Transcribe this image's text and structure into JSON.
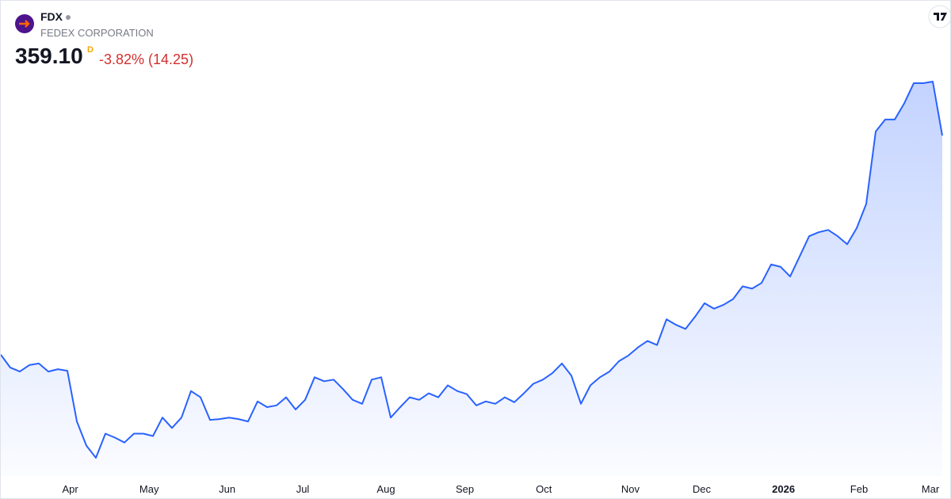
{
  "header": {
    "symbol": "FDX",
    "name": "FEDEX CORPORATION",
    "price": "359.10",
    "price_flag": "D",
    "change": "-3.82% (14.25)"
  },
  "chart_data": {
    "type": "area",
    "color": "#2962ff",
    "values": [
      247.6,
      241.0,
      239.0,
      242.3,
      243.1,
      239.0,
      240.2,
      239.4,
      213.6,
      201.3,
      195.1,
      207.4,
      205.4,
      202.9,
      207.4,
      207.4,
      206.2,
      215.6,
      210.3,
      215.6,
      229.1,
      225.9,
      214.4,
      214.8,
      215.6,
      214.8,
      213.6,
      223.8,
      220.9,
      221.8,
      225.9,
      219.7,
      224.6,
      236.1,
      234.1,
      234.9,
      230.0,
      224.6,
      222.6,
      234.9,
      236.1,
      215.6,
      220.9,
      225.9,
      224.6,
      227.9,
      225.9,
      232.0,
      229.1,
      227.5,
      221.8,
      223.8,
      222.6,
      225.9,
      223.4,
      227.9,
      232.8,
      234.9,
      238.2,
      243.1,
      236.9,
      222.6,
      232.0,
      236.1,
      239.0,
      244.3,
      247.2,
      251.3,
      254.6,
      252.5,
      265.6,
      262.8,
      260.7,
      266.9,
      273.8,
      271.0,
      273.0,
      275.9,
      282.4,
      281.2,
      284.1,
      293.5,
      292.3,
      287.4,
      297.6,
      307.9,
      309.9,
      311.1,
      307.9,
      303.8,
      312.0,
      324.3,
      361.2,
      367.3,
      367.3,
      375.5,
      385.8,
      385.8,
      386.6,
      359.1
    ],
    "xticks": [
      {
        "value": 7.3,
        "label": "Apr"
      },
      {
        "value": 15.6,
        "label": "May"
      },
      {
        "value": 23.8,
        "label": "Jun"
      },
      {
        "value": 31.75,
        "label": "Jul"
      },
      {
        "value": 40.5,
        "label": "Aug"
      },
      {
        "value": 48.8,
        "label": "Sep"
      },
      {
        "value": 57.1,
        "label": "Oct"
      },
      {
        "value": 66.2,
        "label": "Nov"
      },
      {
        "value": 73.7,
        "label": "Dec"
      },
      {
        "value": 82.3,
        "label": "2026"
      },
      {
        "value": 90.25,
        "label": "Feb"
      },
      {
        "value": 97.75,
        "label": "Mar"
      }
    ]
  }
}
